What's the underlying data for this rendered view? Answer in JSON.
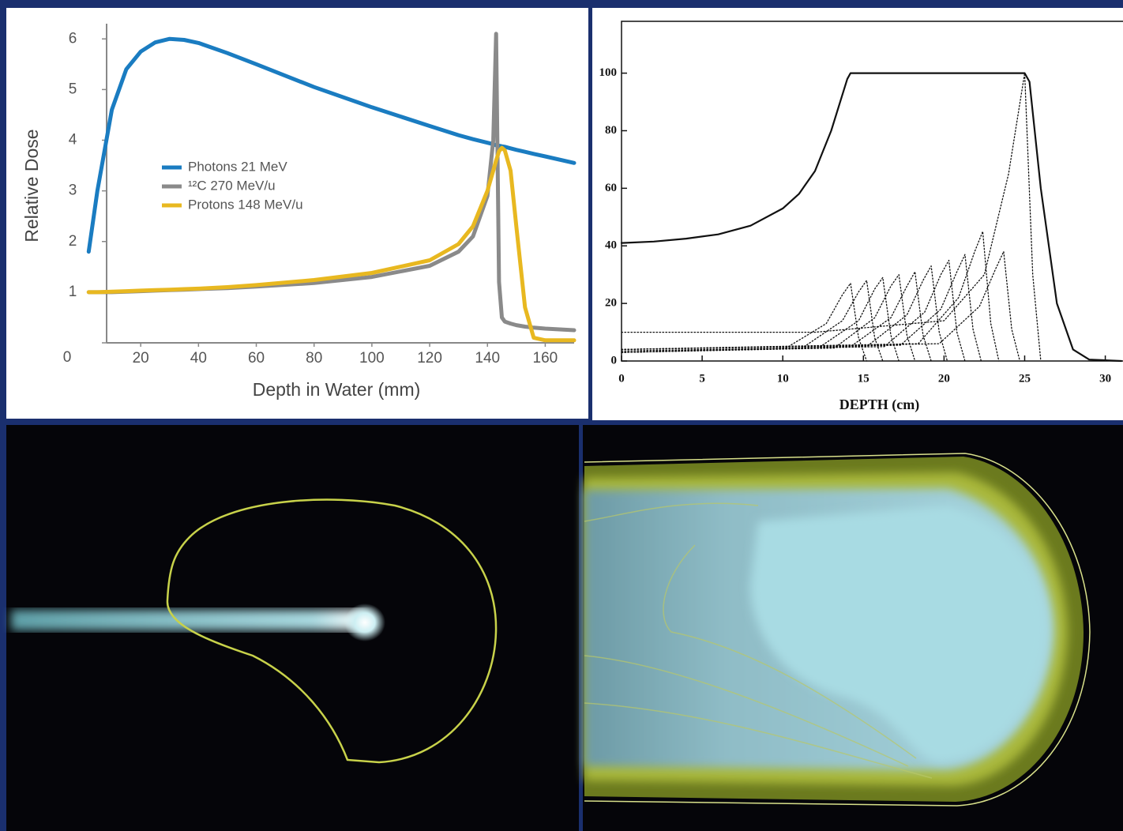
{
  "chart_data": [
    {
      "type": "line",
      "xlabel": "Depth in Water (mm)",
      "ylabel": "Relative Dose",
      "xlim": [
        0,
        170
      ],
      "ylim": [
        0,
        6.3
      ],
      "xticks": [
        20,
        40,
        60,
        80,
        100,
        120,
        140,
        160
      ],
      "yticks": [
        0,
        1,
        2,
        3,
        4,
        5,
        6
      ],
      "legend": "center-left",
      "x": [
        2,
        5,
        10,
        15,
        20,
        25,
        30,
        35,
        40,
        50,
        60,
        80,
        100,
        120,
        130,
        135,
        140,
        142,
        143,
        144,
        145,
        146,
        148,
        150,
        153,
        156,
        160,
        170
      ],
      "series": [
        {
          "name": "Photons 21 MeV",
          "color": "#1a7cc1",
          "values": [
            1.8,
            3.0,
            4.6,
            5.4,
            5.75,
            5.93,
            6.0,
            5.98,
            5.92,
            5.72,
            5.5,
            5.05,
            4.65,
            4.28,
            4.1,
            4.02,
            3.95,
            3.92,
            3.9,
            3.89,
            3.88,
            3.87,
            3.84,
            3.81,
            3.77,
            3.73,
            3.68,
            3.55
          ]
        },
        {
          "name": "¹²C 270 MeV/u",
          "color": "#8a8a8a",
          "values": [
            1,
            1,
            1,
            1.01,
            1.02,
            1.03,
            1.04,
            1.05,
            1.06,
            1.08,
            1.11,
            1.18,
            1.3,
            1.52,
            1.8,
            2.1,
            2.9,
            4.0,
            6.1,
            1.2,
            0.5,
            0.42,
            0.38,
            0.35,
            0.32,
            0.3,
            0.28,
            0.25
          ]
        },
        {
          "name": "Protons 148 MeV/u",
          "color": "#e8b820",
          "values": [
            1,
            1,
            1.01,
            1.02,
            1.03,
            1.04,
            1.05,
            1.06,
            1.07,
            1.1,
            1.14,
            1.24,
            1.38,
            1.63,
            1.95,
            2.3,
            3.0,
            3.4,
            3.6,
            3.78,
            3.85,
            3.8,
            3.4,
            2.3,
            0.7,
            0.1,
            0.05,
            0.05
          ]
        }
      ]
    },
    {
      "type": "line",
      "xlabel": "DEPTH (cm)",
      "xlim": [
        0,
        31
      ],
      "ylim": [
        0,
        118
      ],
      "xticks": [
        0,
        5,
        10,
        15,
        20,
        25,
        30
      ],
      "yticks": [
        0,
        20,
        40,
        60,
        80,
        100
      ],
      "series": [
        {
          "color": "#111111",
          "dash": "solid",
          "x": [
            0,
            2,
            4,
            6,
            8,
            10,
            11,
            12,
            13,
            14,
            14.2,
            25,
            25.3,
            26,
            27,
            28,
            29,
            31
          ],
          "values": [
            41,
            41.5,
            42.5,
            44,
            47,
            53,
            58,
            66,
            80,
            98,
            100,
            100,
            97,
            60,
            20,
            4,
            0.5,
            0
          ]
        },
        {
          "color": "#111111",
          "dash": "dotted",
          "x": [
            0,
            10.2,
            12.7,
            13.7,
            14.2,
            14.7,
            15.2
          ],
          "values": [
            3,
            4.5,
            13,
            23,
            27,
            8,
            0
          ]
        },
        {
          "color": "#111111",
          "dash": "dotted",
          "x": [
            0,
            11.2,
            13.7,
            14.7,
            15.2,
            15.7,
            16.2
          ],
          "values": [
            3,
            4.5,
            14,
            24,
            28,
            8,
            0
          ]
        },
        {
          "color": "#111111",
          "dash": "dotted",
          "x": [
            0,
            12.2,
            14.7,
            15.7,
            16.2,
            16.7,
            17.2
          ],
          "values": [
            3,
            4.5,
            14,
            25,
            29,
            9,
            0
          ]
        },
        {
          "color": "#111111",
          "dash": "dotted",
          "x": [
            0,
            13.2,
            15.7,
            16.7,
            17.2,
            17.7,
            18.2
          ],
          "values": [
            3,
            4.5,
            15,
            26,
            30,
            9,
            0
          ]
        },
        {
          "color": "#111111",
          "dash": "dotted",
          "x": [
            0,
            14.2,
            16.7,
            17.7,
            18.2,
            18.7,
            19.2
          ],
          "values": [
            3,
            5,
            15,
            26,
            31,
            9,
            0
          ]
        },
        {
          "color": "#111111",
          "dash": "dotted",
          "x": [
            0,
            15.2,
            17.7,
            18.7,
            19.2,
            19.7,
            20.2
          ],
          "values": [
            3,
            5,
            16,
            28,
            33,
            10,
            0
          ]
        },
        {
          "color": "#111111",
          "dash": "dotted",
          "x": [
            0,
            16.3,
            18.8,
            19.8,
            20.3,
            20.8,
            21.3
          ],
          "values": [
            3.5,
            5,
            17,
            30,
            35,
            10,
            0
          ]
        },
        {
          "color": "#111111",
          "dash": "dotted",
          "x": [
            0,
            17.3,
            19.8,
            20.8,
            21.3,
            21.8,
            22.3
          ],
          "values": [
            4,
            5.5,
            18,
            31,
            37,
            11,
            0
          ]
        },
        {
          "color": "#111111",
          "dash": "dotted",
          "x": [
            0,
            18.4,
            20.9,
            21.9,
            22.4,
            22.9,
            23.4
          ],
          "values": [
            4,
            6,
            22,
            38,
            45,
            13,
            0
          ]
        },
        {
          "color": "#111111",
          "dash": "dotted",
          "x": [
            0,
            19.7,
            22.2,
            23.2,
            23.7,
            24.2,
            24.7
          ],
          "values": [
            4,
            6,
            19,
            32,
            38,
            11,
            0
          ]
        },
        {
          "color": "#111111",
          "dash": "dotted",
          "x": [
            0,
            12,
            20,
            22.5,
            24,
            25,
            25.5,
            26
          ],
          "values": [
            10,
            10,
            14,
            30,
            65,
            100,
            30,
            0
          ]
        }
      ]
    }
  ]
}
